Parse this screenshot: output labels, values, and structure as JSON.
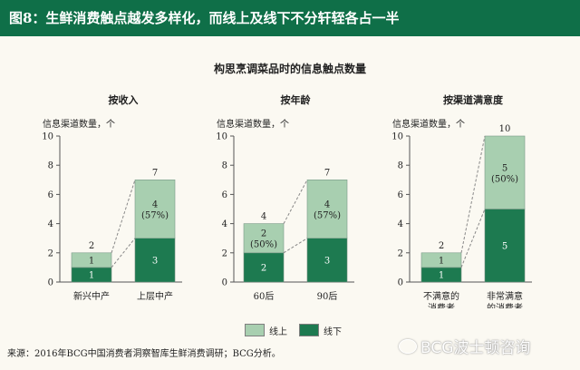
{
  "header": {
    "title": "图8：生鲜消费触点越发多样化，而线上及线下不分轩轾各占一半"
  },
  "main_title": "构思烹调菜品时的信息触点数量",
  "legend": {
    "online": "线上",
    "offline": "线下"
  },
  "source": "来源：2016年BCG中国消费者洞察智库生鲜消费调研；BCG分析。",
  "watermark": "BCG波士顿咨询",
  "colors": {
    "header_bg": "#0f6f48",
    "online": "#a8cfb0",
    "offline": "#1d7a50",
    "background": "#fbf9f2"
  },
  "chart_data": [
    {
      "type": "bar",
      "stacked": true,
      "title": "按收入",
      "ylabel": "信息渠道数量，个",
      "ylim": [
        0,
        10
      ],
      "yticks": [
        "0",
        "2",
        "4",
        "6",
        "8",
        "10"
      ],
      "categories": [
        "新兴中产",
        "上层中产"
      ],
      "series": [
        {
          "name": "线下",
          "values": [
            1,
            3
          ]
        },
        {
          "name": "线上",
          "values": [
            1,
            4
          ]
        }
      ],
      "totals": [
        2,
        7
      ],
      "annotation": {
        "bar": 1,
        "text": "(57%)"
      }
    },
    {
      "type": "bar",
      "stacked": true,
      "title": "按年龄",
      "ylabel": "信息渠道数量，个",
      "ylim": [
        0,
        10
      ],
      "yticks": [
        "0",
        "2",
        "4",
        "6",
        "8",
        "10"
      ],
      "categories": [
        "60后",
        "90后"
      ],
      "series": [
        {
          "name": "线下",
          "values": [
            2,
            3
          ]
        },
        {
          "name": "线上",
          "values": [
            2,
            4
          ]
        }
      ],
      "totals": [
        4,
        7
      ],
      "annotations": [
        {
          "bar": 0,
          "text": "(50%)"
        },
        {
          "bar": 1,
          "text": "(57%)"
        }
      ]
    },
    {
      "type": "bar",
      "stacked": true,
      "title": "按渠道满意度",
      "ylabel": "信息渠道数量，个",
      "ylim": [
        0,
        10
      ],
      "yticks": [
        "0",
        "2",
        "4",
        "6",
        "8",
        "10"
      ],
      "categories": [
        "不满意的\n消费者",
        "非常满意\n的消费者"
      ],
      "series": [
        {
          "name": "线下",
          "values": [
            1,
            5
          ]
        },
        {
          "name": "线上",
          "values": [
            1,
            5
          ]
        }
      ],
      "totals": [
        2,
        10
      ],
      "annotation": {
        "bar": 1,
        "text": "(50%)"
      }
    }
  ]
}
